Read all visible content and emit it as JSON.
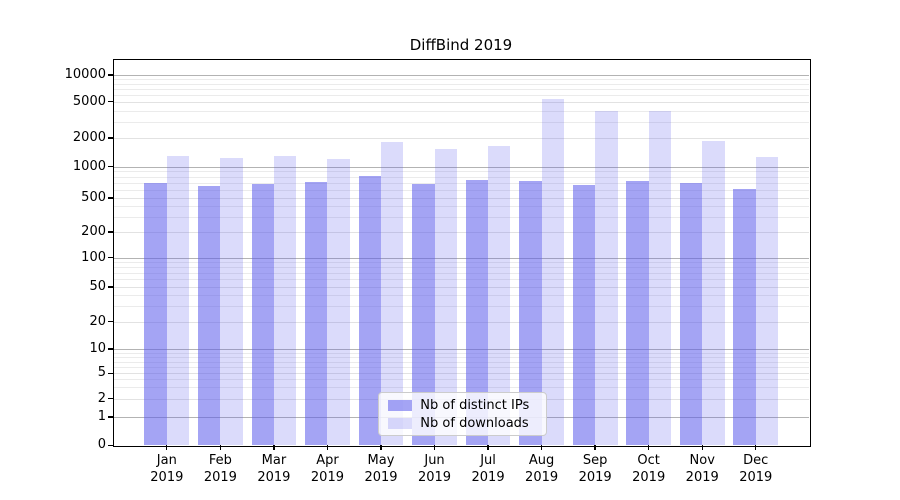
{
  "chart_data": {
    "type": "bar",
    "title": "DiffBind 2019",
    "x_axis": {
      "categories": [
        "Jan",
        "Feb",
        "Mar",
        "Apr",
        "May",
        "Jun",
        "Jul",
        "Aug",
        "Sep",
        "Oct",
        "Nov",
        "Dec"
      ],
      "year_line": "2019"
    },
    "y_axis": {
      "scale": "symlog",
      "tick_labels": [
        "0",
        "1",
        "2",
        "5",
        "10",
        "20",
        "50",
        "100",
        "200",
        "500",
        "1000",
        "2000",
        "5000",
        "10000"
      ],
      "ylim": [
        0,
        14500
      ],
      "grid": true
    },
    "series": [
      {
        "name": "Nb of distinct IPs",
        "color_solid": "#a3a3f0",
        "color": "rgba(90,90,235,0.55)",
        "values": [
          690,
          650,
          680,
          720,
          810,
          685,
          750,
          725,
          665,
          725,
          690,
          610
        ]
      },
      {
        "name": "Nb of downloads",
        "color_solid": "#dcdcf9",
        "color": "rgba(90,90,235,0.22)",
        "values": [
          1280,
          1230,
          1300,
          1210,
          1800,
          1530,
          1650,
          5300,
          4000,
          3980,
          1840,
          1250
        ]
      }
    ],
    "legend": {
      "position": "lower-center",
      "entries": [
        "Nb of distinct IPs",
        "Nb of downloads"
      ]
    }
  },
  "colors": {
    "grid_major": "#b3b3b3",
    "grid_sub": "#e2e2e2",
    "grid_minor": "#ebebeb",
    "axis": "#000000",
    "legend_border": "#cccccc"
  }
}
